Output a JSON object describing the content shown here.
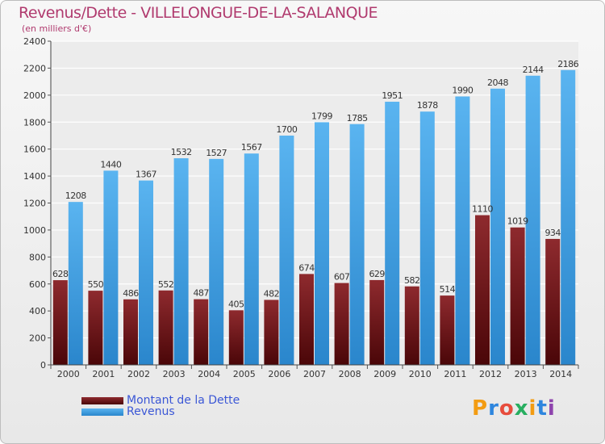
{
  "header": {
    "title": "Revenus/Dette - VILLELONGUE-DE-LA-SALANQUE",
    "subtitle": "(en milliers d'€)"
  },
  "legend": {
    "items": [
      {
        "label": "Montant de la Dette",
        "color": "#7a1a1d"
      },
      {
        "label": "Revenus",
        "color": "#3d9ee6"
      }
    ]
  },
  "logo": {
    "letters": [
      "P",
      "r",
      "o",
      "x",
      "i",
      "t",
      "i"
    ],
    "colors": [
      "#f39c12",
      "#2e86de",
      "#e74c3c",
      "#27ae60",
      "#f39c12",
      "#2e86de",
      "#8e44ad"
    ]
  },
  "chart_data": {
    "type": "bar",
    "title": "Revenus/Dette - VILLELONGUE-DE-LA-SALANQUE",
    "subtitle": "(en milliers d'€)",
    "categories": [
      "2000",
      "2001",
      "2002",
      "2003",
      "2004",
      "2005",
      "2006",
      "2007",
      "2008",
      "2009",
      "2010",
      "2011",
      "2012",
      "2013",
      "2014"
    ],
    "series": [
      {
        "name": "Montant de la Dette",
        "color": "#7a1a1d",
        "values": [
          628,
          550,
          486,
          552,
          487,
          405,
          482,
          674,
          607,
          629,
          582,
          514,
          1110,
          1019,
          934
        ]
      },
      {
        "name": "Revenus",
        "color": "#3d9ee6",
        "values": [
          1208,
          1440,
          1367,
          1532,
          1527,
          1567,
          1700,
          1799,
          1785,
          1951,
          1878,
          1990,
          2048,
          2144,
          2186
        ]
      }
    ],
    "ylim": [
      0,
      2400
    ],
    "yticks": [
      0,
      200,
      400,
      600,
      800,
      1000,
      1200,
      1400,
      1600,
      1800,
      2000,
      2200,
      2400
    ],
    "grid": true,
    "legend_position": "bottom-left"
  }
}
